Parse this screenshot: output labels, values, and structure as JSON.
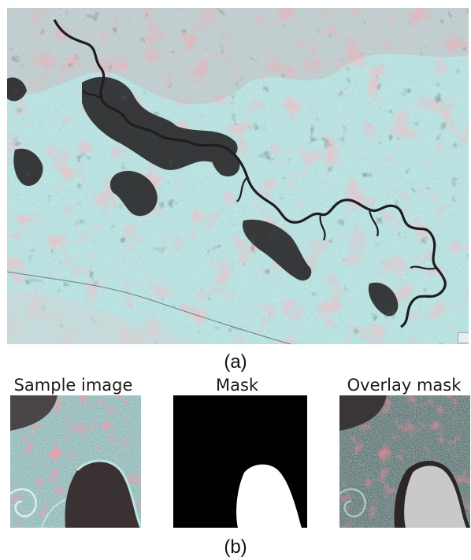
{
  "captions": {
    "a": "(a)",
    "b": "(b)"
  },
  "thumbnails": [
    {
      "title": "Sample image"
    },
    {
      "title": "Mask"
    },
    {
      "title": "Overlay mask"
    }
  ],
  "colors": {
    "land_cyan": "#a9d9d8",
    "vegetation_pink": "#d98a93",
    "water_dark": "#2b2a2c",
    "mask_white": "#ffffff",
    "mask_black": "#000000",
    "overlay_gray": "#c9c9c9"
  }
}
